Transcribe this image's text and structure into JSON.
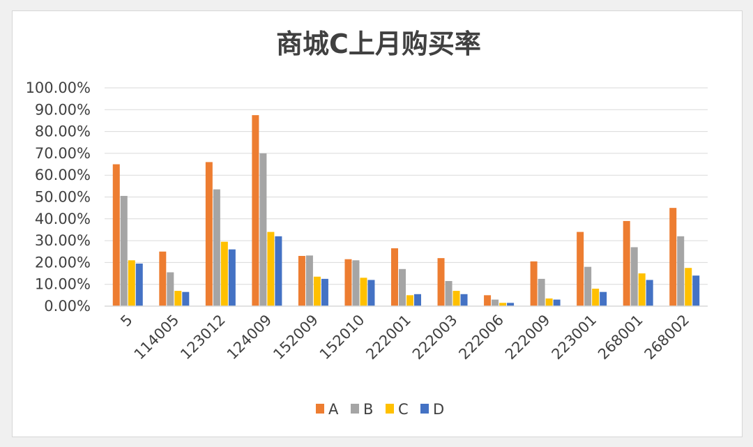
{
  "chart_data": {
    "type": "bar",
    "title": "商城C上月购买率",
    "xlabel": "",
    "ylabel": "",
    "categories": [
      "5",
      "114005",
      "123012",
      "124009",
      "152009",
      "152010",
      "222001",
      "222003",
      "222006",
      "222009",
      "223001",
      "268001",
      "268002"
    ],
    "series": [
      {
        "name": "A",
        "color": "#ed7d31",
        "values": [
          0.65,
          0.25,
          0.66,
          0.875,
          0.23,
          0.215,
          0.265,
          0.22,
          0.05,
          0.205,
          0.34,
          0.39,
          0.45
        ]
      },
      {
        "name": "B",
        "color": "#a5a5a5",
        "values": [
          0.505,
          0.155,
          0.535,
          0.7,
          0.232,
          0.21,
          0.17,
          0.115,
          0.03,
          0.125,
          0.18,
          0.27,
          0.32
        ]
      },
      {
        "name": "C",
        "color": "#ffc000",
        "values": [
          0.21,
          0.07,
          0.295,
          0.34,
          0.135,
          0.13,
          0.05,
          0.07,
          0.015,
          0.035,
          0.08,
          0.15,
          0.175
        ]
      },
      {
        "name": "D",
        "color": "#4472c4",
        "values": [
          0.195,
          0.065,
          0.26,
          0.32,
          0.125,
          0.12,
          0.055,
          0.055,
          0.015,
          0.03,
          0.065,
          0.12,
          0.14
        ]
      }
    ],
    "ylim": [
      0,
      1
    ],
    "yticks": [
      "0.00%",
      "10.00%",
      "20.00%",
      "30.00%",
      "40.00%",
      "50.00%",
      "60.00%",
      "70.00%",
      "80.00%",
      "90.00%",
      "100.00%"
    ],
    "ytick_values": [
      0,
      0.1,
      0.2,
      0.3,
      0.4,
      0.5,
      0.6,
      0.7,
      0.8,
      0.9,
      1.0
    ],
    "grid": true,
    "legend": "bottom",
    "axis_color": "#d9d9d9"
  }
}
